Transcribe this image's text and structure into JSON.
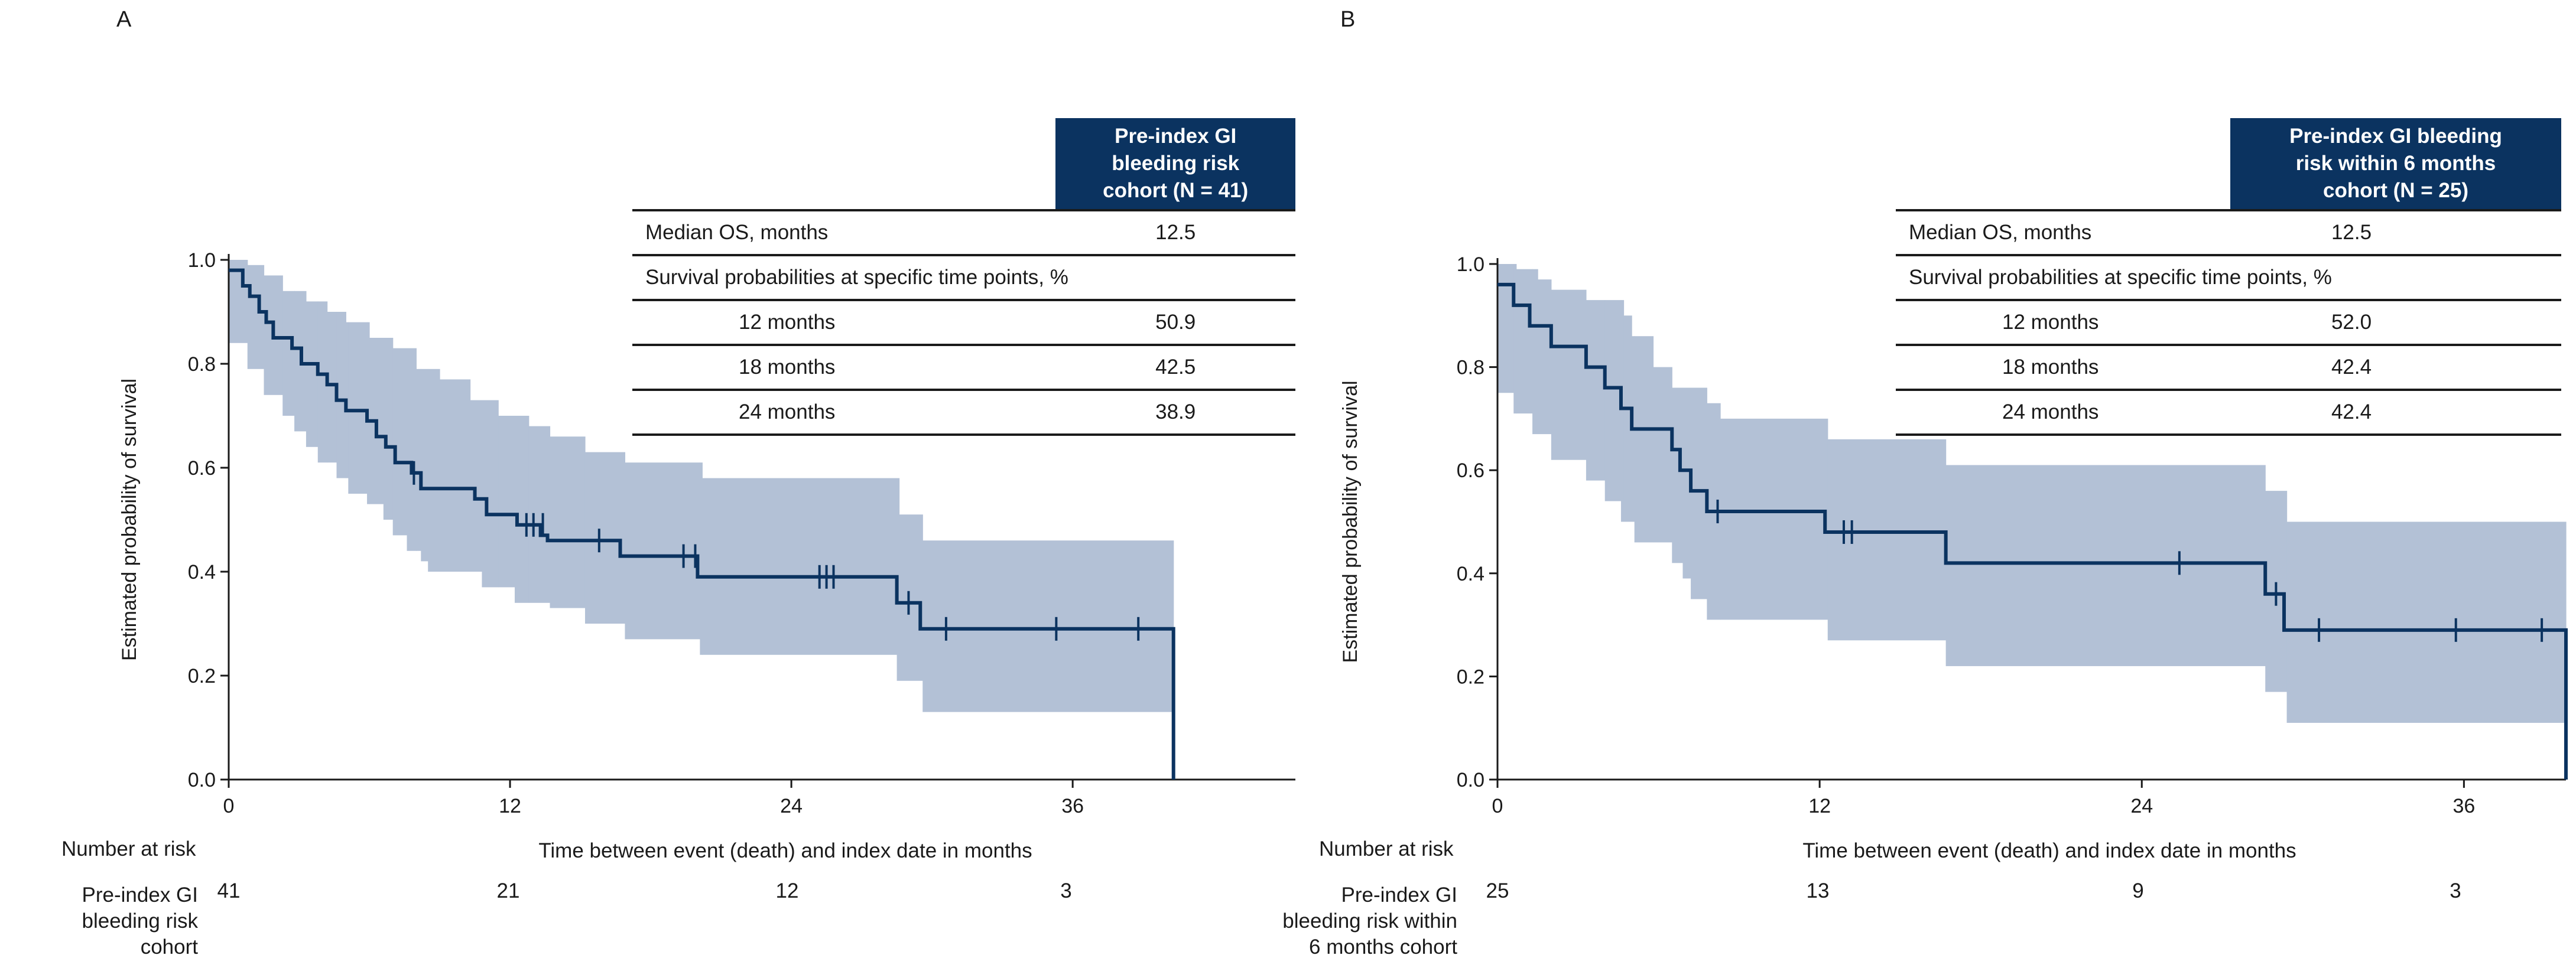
{
  "colors": {
    "line": "#0b3360",
    "band": "#b3c1d6",
    "header_bg": "#0b3360",
    "text": "#1a1a1a"
  },
  "chart_data": [
    {
      "type": "line",
      "panel": "A",
      "xlabel": "Time between event (death) and index date in months",
      "ylabel": "Estimated probability of survival",
      "xlim": [
        0,
        45.5
      ],
      "ylim": [
        0,
        1.0
      ],
      "xticks": [
        0,
        12,
        24,
        36
      ],
      "yticks": [
        0.0,
        0.2,
        0.4,
        0.6,
        0.8,
        1.0
      ],
      "ytick_labels": [
        "0.0",
        "0.2",
        "0.4",
        "0.6",
        "0.8",
        "1.0"
      ],
      "series": [
        {
          "name": "Pre-index GI bleeding risk cohort (N = 41)",
          "steps": [
            [
              0,
              0.98
            ],
            [
              0.6,
              0.95
            ],
            [
              0.9,
              0.93
            ],
            [
              1.3,
              0.9
            ],
            [
              1.6,
              0.88
            ],
            [
              1.9,
              0.85
            ],
            [
              2.7,
              0.83
            ],
            [
              3.1,
              0.8
            ],
            [
              3.8,
              0.78
            ],
            [
              4.2,
              0.76
            ],
            [
              4.6,
              0.73
            ],
            [
              5.0,
              0.71
            ],
            [
              5.9,
              0.69
            ],
            [
              6.3,
              0.66
            ],
            [
              6.7,
              0.64
            ],
            [
              7.1,
              0.61
            ],
            [
              7.8,
              0.59
            ],
            [
              8.2,
              0.56
            ],
            [
              10.5,
              0.54
            ],
            [
              11.0,
              0.51
            ],
            [
              12.3,
              0.49
            ],
            [
              13.3,
              0.47
            ],
            [
              13.6,
              0.46
            ],
            [
              16.7,
              0.43
            ],
            [
              20.0,
              0.39
            ],
            [
              28.5,
              0.34
            ],
            [
              29.5,
              0.29
            ],
            [
              40.3,
              0.29
            ],
            [
              40.3,
              0.0
            ]
          ],
          "ci_upper": [
            [
              0,
              1.0
            ],
            [
              0.8,
              0.99
            ],
            [
              1.5,
              0.97
            ],
            [
              2.3,
              0.94
            ],
            [
              3.3,
              0.92
            ],
            [
              4.2,
              0.9
            ],
            [
              5.0,
              0.88
            ],
            [
              6.0,
              0.85
            ],
            [
              7.0,
              0.83
            ],
            [
              8.0,
              0.79
            ],
            [
              9.0,
              0.77
            ],
            [
              10.3,
              0.73
            ],
            [
              11.5,
              0.7
            ],
            [
              12.8,
              0.68
            ],
            [
              13.7,
              0.66
            ],
            [
              15.2,
              0.63
            ],
            [
              16.9,
              0.61
            ],
            [
              20.2,
              0.58
            ],
            [
              28.6,
              0.51
            ],
            [
              29.6,
              0.46
            ],
            [
              40.3,
              0.46
            ]
          ],
          "ci_lower": [
            [
              0,
              0.84
            ],
            [
              0.8,
              0.79
            ],
            [
              1.5,
              0.74
            ],
            [
              2.3,
              0.7
            ],
            [
              2.8,
              0.67
            ],
            [
              3.3,
              0.64
            ],
            [
              3.8,
              0.61
            ],
            [
              4.6,
              0.58
            ],
            [
              5.1,
              0.55
            ],
            [
              5.9,
              0.53
            ],
            [
              6.6,
              0.5
            ],
            [
              7.0,
              0.47
            ],
            [
              7.6,
              0.44
            ],
            [
              8.2,
              0.42
            ],
            [
              8.5,
              0.4
            ],
            [
              10.8,
              0.37
            ],
            [
              12.2,
              0.34
            ],
            [
              13.7,
              0.33
            ],
            [
              15.2,
              0.3
            ],
            [
              16.9,
              0.27
            ],
            [
              20.1,
              0.24
            ],
            [
              28.5,
              0.19
            ],
            [
              29.6,
              0.13
            ],
            [
              40.3,
              0.13
            ]
          ],
          "censor_marks": [
            [
              7.9,
              0.59
            ],
            [
              12.7,
              0.49
            ],
            [
              13.0,
              0.49
            ],
            [
              13.4,
              0.49
            ],
            [
              15.8,
              0.46
            ],
            [
              19.4,
              0.43
            ],
            [
              19.9,
              0.43
            ],
            [
              25.2,
              0.39
            ],
            [
              25.5,
              0.39
            ],
            [
              25.8,
              0.39
            ],
            [
              29.0,
              0.34
            ],
            [
              30.6,
              0.29
            ],
            [
              35.3,
              0.29
            ],
            [
              38.8,
              0.29
            ]
          ]
        }
      ],
      "number_at_risk": {
        "title": "Number at risk",
        "row_label": "Pre-index GI bleeding risk cohort",
        "values": [
          "41",
          "21",
          "12",
          "3"
        ]
      }
    },
    {
      "type": "line",
      "panel": "B",
      "xlabel": "Time between event (death) and index date in months",
      "ylabel": "Estimated probability of survival",
      "xlim": [
        0,
        39.8
      ],
      "ylim": [
        0,
        1.0
      ],
      "xticks": [
        0,
        12,
        24,
        36
      ],
      "yticks": [
        0.0,
        0.2,
        0.4,
        0.6,
        0.8,
        1.0
      ],
      "ytick_labels": [
        "0.0",
        "0.2",
        "0.4",
        "0.6",
        "0.8",
        "1.0"
      ],
      "series": [
        {
          "name": "Pre-index GI bleeding risk within 6 months cohort (N = 25)",
          "steps": [
            [
              0,
              0.96
            ],
            [
              0.6,
              0.92
            ],
            [
              1.2,
              0.88
            ],
            [
              2.0,
              0.84
            ],
            [
              3.3,
              0.8
            ],
            [
              4.0,
              0.76
            ],
            [
              4.6,
              0.72
            ],
            [
              5.0,
              0.68
            ],
            [
              6.5,
              0.64
            ],
            [
              6.8,
              0.6
            ],
            [
              7.2,
              0.56
            ],
            [
              7.8,
              0.52
            ],
            [
              12.2,
              0.48
            ],
            [
              16.7,
              0.42
            ],
            [
              28.6,
              0.36
            ],
            [
              29.3,
              0.29
            ],
            [
              39.8,
              0.29
            ],
            [
              39.8,
              0.0
            ]
          ],
          "ci_upper": [
            [
              0,
              1.0
            ],
            [
              0.7,
              0.99
            ],
            [
              1.5,
              0.97
            ],
            [
              2.0,
              0.95
            ],
            [
              3.3,
              0.93
            ],
            [
              4.7,
              0.9
            ],
            [
              5.0,
              0.86
            ],
            [
              5.8,
              0.8
            ],
            [
              6.5,
              0.76
            ],
            [
              7.8,
              0.73
            ],
            [
              8.3,
              0.7
            ],
            [
              12.3,
              0.66
            ],
            [
              16.7,
              0.61
            ],
            [
              28.6,
              0.56
            ],
            [
              29.4,
              0.5
            ],
            [
              39.8,
              0.5
            ]
          ],
          "ci_lower": [
            [
              0,
              0.75
            ],
            [
              0.6,
              0.71
            ],
            [
              1.3,
              0.67
            ],
            [
              2.0,
              0.62
            ],
            [
              3.3,
              0.58
            ],
            [
              4.0,
              0.54
            ],
            [
              4.6,
              0.5
            ],
            [
              5.1,
              0.46
            ],
            [
              6.5,
              0.42
            ],
            [
              6.9,
              0.39
            ],
            [
              7.2,
              0.35
            ],
            [
              7.8,
              0.31
            ],
            [
              12.3,
              0.27
            ],
            [
              16.7,
              0.22
            ],
            [
              28.6,
              0.17
            ],
            [
              29.4,
              0.11
            ],
            [
              39.8,
              0.11
            ]
          ],
          "censor_marks": [
            [
              8.2,
              0.52
            ],
            [
              12.9,
              0.48
            ],
            [
              13.2,
              0.48
            ],
            [
              25.4,
              0.42
            ],
            [
              29.0,
              0.36
            ],
            [
              30.6,
              0.29
            ],
            [
              35.7,
              0.29
            ],
            [
              38.9,
              0.29
            ]
          ]
        }
      ],
      "number_at_risk": {
        "title": "Number at risk",
        "row_label": "Pre-index GI bleeding risk within 6 months cohort",
        "values": [
          "25",
          "13",
          "9",
          "3"
        ]
      }
    }
  ],
  "panels": {
    "a": {
      "label": "A",
      "table": {
        "header": "Pre-index GI bleeding risk cohort (N = 41)",
        "median_label": "Median OS, months",
        "median_value": "12.5",
        "survival_label": "Survival probabilities at specific time points, %",
        "m12_label": "12 months",
        "m12_value": "50.9",
        "m18_label": "18 months",
        "m18_value": "42.5",
        "m24_label": "24 months",
        "m24_value": "38.9"
      },
      "risk": {
        "title": "Number at risk",
        "line1": "Pre-index GI",
        "line2": "bleeding risk cohort",
        "line3": ""
      }
    },
    "b": {
      "label": "B",
      "table": {
        "header": "Pre-index GI bleeding risk within 6 months cohort (N = 25)",
        "median_label": "Median OS, months",
        "median_value": "12.5",
        "survival_label": "Survival probabilities at specific time points, %",
        "m12_label": "12 months",
        "m12_value": "52.0",
        "m18_label": "18 months",
        "m18_value": "42.4",
        "m24_label": "24 months",
        "m24_value": "42.4"
      },
      "risk": {
        "title": "Number at risk",
        "line1": "Pre-index GI",
        "line2": "bleeding risk within",
        "line3": "6 months cohort"
      }
    }
  }
}
